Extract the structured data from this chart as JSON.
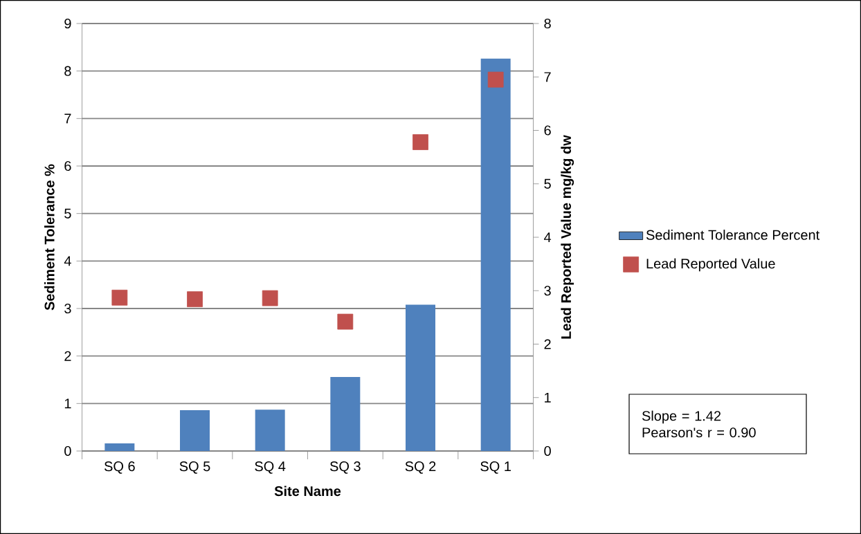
{
  "chart_data": {
    "type": "bar",
    "xlabel": "Site Name",
    "ylabel": "Sediment Tolerance %",
    "y2label": "Lead Reported Value mg/kg dw",
    "categories": [
      "SQ 6",
      "SQ 5",
      "SQ 4",
      "SQ 3",
      "SQ 2",
      "SQ 1"
    ],
    "series": [
      {
        "name": "Sediment Tolerance Percent",
        "color": "#4f81bd",
        "values": [
          0.16,
          0.86,
          0.87,
          1.56,
          3.08,
          8.26
        ]
      },
      {
        "name": "Lead Reported Value",
        "type": "scatter",
        "axis": "y2",
        "marker": "square",
        "color": "#c0504d",
        "values": [
          2.87,
          2.84,
          2.86,
          2.42,
          5.78,
          6.95
        ]
      }
    ],
    "ylim": [
      0,
      9
    ],
    "yticks": [
      0,
      1,
      2,
      3,
      4,
      5,
      6,
      7,
      8,
      9
    ],
    "y2lim": [
      0,
      8
    ],
    "y2ticks": [
      0,
      1,
      2,
      3,
      4,
      5,
      6,
      7,
      8
    ],
    "grid": "y",
    "legend": "right",
    "annotations": [
      "Slope = 1.42",
      "Pearson's r = 0.90"
    ]
  }
}
